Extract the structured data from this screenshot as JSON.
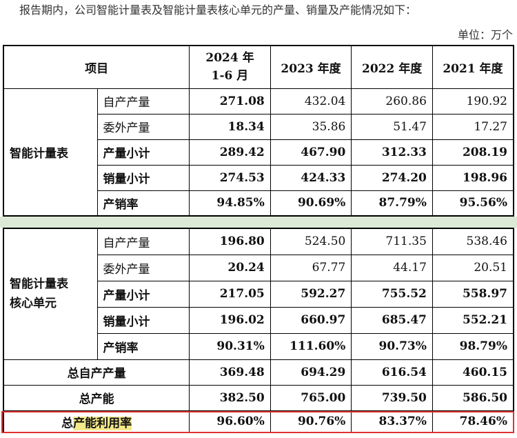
{
  "intro": "报告期内，公司智能计量表及智能计量表核心单元的产量、销量及产能情况如下：",
  "unit": "单位：万个",
  "header": {
    "item": "项目",
    "y2024": "2024 年\n1-6 月",
    "y2024_line1": "2024 年",
    "y2024_line2": "1-6 月",
    "y2023": "2023 年度",
    "y2022": "2022 年度",
    "y2021": "2021 年度"
  },
  "group1": {
    "name": "智能计量表",
    "rows": [
      {
        "label": "自产产量",
        "v": [
          "271.08",
          "432.04",
          "260.86",
          "190.92"
        ]
      },
      {
        "label": "委外产量",
        "v": [
          "18.34",
          "35.86",
          "51.47",
          "17.27"
        ]
      },
      {
        "label": "产量小计",
        "v": [
          "289.42",
          "467.90",
          "312.33",
          "208.19"
        ]
      },
      {
        "label": "销量小计",
        "v": [
          "274.53",
          "424.33",
          "274.20",
          "198.96"
        ]
      },
      {
        "label": "产销率",
        "v": [
          "94.85%",
          "90.69%",
          "87.79%",
          "95.56%"
        ]
      }
    ]
  },
  "group2": {
    "name_line1": "智能计量表",
    "name_line2": "核心单元",
    "rows": [
      {
        "label": "自产产量",
        "v": [
          "196.80",
          "524.50",
          "711.35",
          "538.46"
        ]
      },
      {
        "label": "委外产量",
        "v": [
          "20.24",
          "67.77",
          "44.17",
          "20.51"
        ]
      },
      {
        "label": "产量小计",
        "v": [
          "217.05",
          "592.27",
          "755.52",
          "558.97"
        ]
      },
      {
        "label": "销量小计",
        "v": [
          "196.02",
          "660.97",
          "685.47",
          "552.21"
        ]
      },
      {
        "label": "产销率",
        "v": [
          "90.31%",
          "111.60%",
          "90.73%",
          "98.79%"
        ]
      }
    ]
  },
  "totals": [
    {
      "label": "总自产产量",
      "v": [
        "369.48",
        "694.29",
        "616.54",
        "460.15"
      ]
    },
    {
      "label": "总产能",
      "v": [
        "382.50",
        "765.00",
        "739.50",
        "586.50"
      ]
    },
    {
      "label_prefix": "总",
      "label_mark": "产能利用率",
      "v": [
        "96.60%",
        "90.76%",
        "83.37%",
        "78.46%"
      ]
    }
  ],
  "colors": {
    "highlight": "#f3e88a",
    "box": "#e03030",
    "separator": "#dce9d6"
  }
}
